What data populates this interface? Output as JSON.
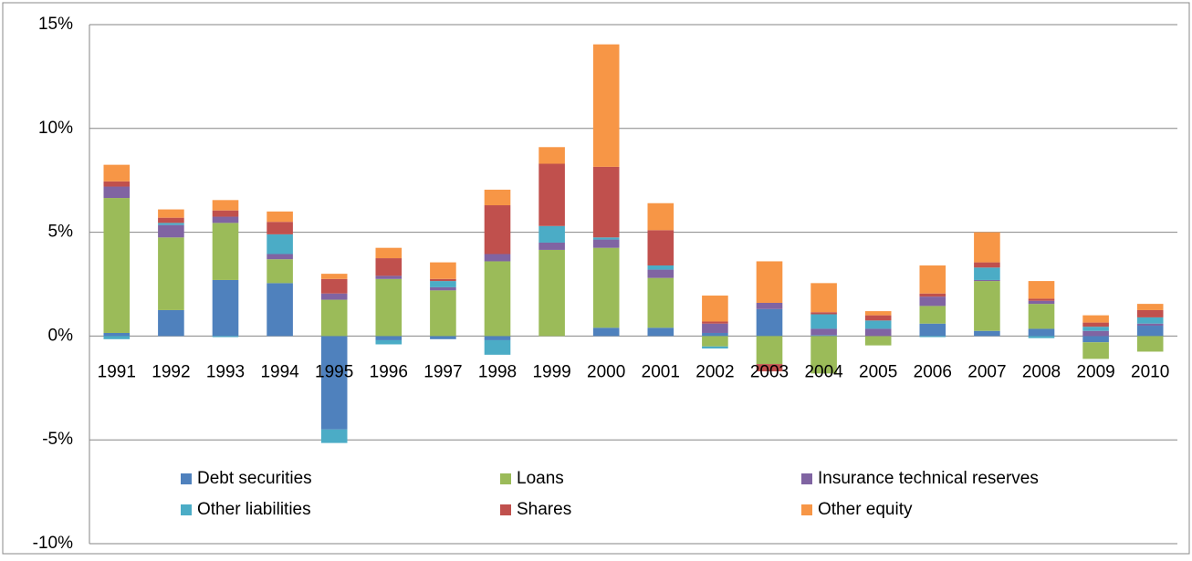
{
  "chart_data": {
    "type": "stacked_bar",
    "categories": [
      "1991",
      "1992",
      "1993",
      "1994",
      "1995",
      "1996",
      "1997",
      "1998",
      "1999",
      "2000",
      "2001",
      "2002",
      "2003",
      "2004",
      "2005",
      "2006",
      "2007",
      "2008",
      "2009",
      "2010"
    ],
    "series": [
      {
        "name": "Debt securities",
        "color": "#4f81bd",
        "values": [
          0.15,
          1.25,
          2.7,
          2.55,
          -4.5,
          -0.2,
          -0.15,
          -0.2,
          0,
          0.4,
          0.4,
          0.15,
          1.3,
          0.05,
          0,
          0.6,
          0.25,
          0.35,
          -0.3,
          0.5
        ]
      },
      {
        "name": "Loans",
        "color": "#9bbb59",
        "values": [
          6.5,
          3.5,
          2.75,
          1.15,
          1.75,
          2.75,
          2.2,
          3.6,
          4.15,
          3.85,
          2.4,
          -0.5,
          -1.35,
          -1.8,
          -0.45,
          0.85,
          2.4,
          1.2,
          -0.8,
          -0.75
        ]
      },
      {
        "name": "Insurance technical reserves",
        "color": "#8064a2",
        "values": [
          0.55,
          0.6,
          0.3,
          0.25,
          0.3,
          0.15,
          0.15,
          0.35,
          0.35,
          0.4,
          0.4,
          0.45,
          0.3,
          0.3,
          0.35,
          0.45,
          0.05,
          0.15,
          0.25,
          0.1
        ]
      },
      {
        "name": "Other liabilities",
        "color": "#4bacc6",
        "values": [
          -0.15,
          0.1,
          -0.05,
          0.95,
          -0.65,
          -0.2,
          0.3,
          -0.7,
          0.8,
          0.1,
          0.2,
          -0.1,
          0,
          0.7,
          0.4,
          -0.05,
          0.6,
          -0.1,
          0.2,
          0.3
        ]
      },
      {
        "name": "Shares",
        "color": "#c0504d",
        "values": [
          0.25,
          0.25,
          0.3,
          0.6,
          0.7,
          0.85,
          0.1,
          2.35,
          3.0,
          3.4,
          1.7,
          0.1,
          -0.35,
          0.1,
          0.25,
          0.15,
          0.25,
          0.1,
          0.2,
          0.35
        ]
      },
      {
        "name": "Other equity",
        "color": "#f79646",
        "values": [
          0.8,
          0.4,
          0.5,
          0.5,
          0.25,
          0.5,
          0.8,
          0.75,
          0.8,
          5.9,
          1.3,
          1.25,
          2.0,
          1.4,
          0.2,
          1.35,
          1.45,
          0.85,
          0.35,
          0.3
        ]
      }
    ],
    "ylim": [
      -10,
      15
    ],
    "yticks": [
      {
        "value": -10,
        "label": "-10%"
      },
      {
        "value": -5,
        "label": "-5%"
      },
      {
        "value": 0,
        "label": "0%"
      },
      {
        "value": 5,
        "label": "5%"
      },
      {
        "value": 10,
        "label": "10%"
      },
      {
        "value": 15,
        "label": "15%"
      }
    ],
    "grid": true,
    "legend": "bottom"
  }
}
